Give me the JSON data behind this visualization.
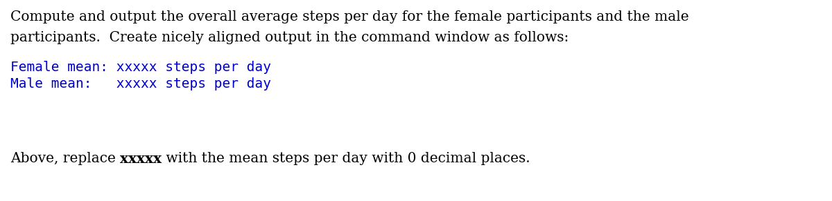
{
  "para1_line1": "Compute and output the overall average steps per day for the female participants and the male",
  "para1_line2": "participants.  Create nicely aligned output in the command window as follows:",
  "para1_color": "#000000",
  "para1_fontsize": 14.5,
  "para1_fontfamily": "DejaVu Serif",
  "code_line1": "Female mean: xxxxx steps per day",
  "code_line2": "Male mean:   xxxxx steps per day",
  "code_color": "#0000cd",
  "code_fontsize": 14.0,
  "code_fontfamily": "DejaVu Sans Mono",
  "para2_prefix": "Above, replace ",
  "para2_bold": "xxxxx",
  "para2_suffix": " with the mean steps per day with 0 decimal places.",
  "para2_color": "#000000",
  "para2_fontsize": 14.5,
  "para2_fontfamily": "DejaVu Serif",
  "bg_color": "#ffffff",
  "fig_width": 12.0,
  "fig_height": 2.91,
  "dpi": 100
}
